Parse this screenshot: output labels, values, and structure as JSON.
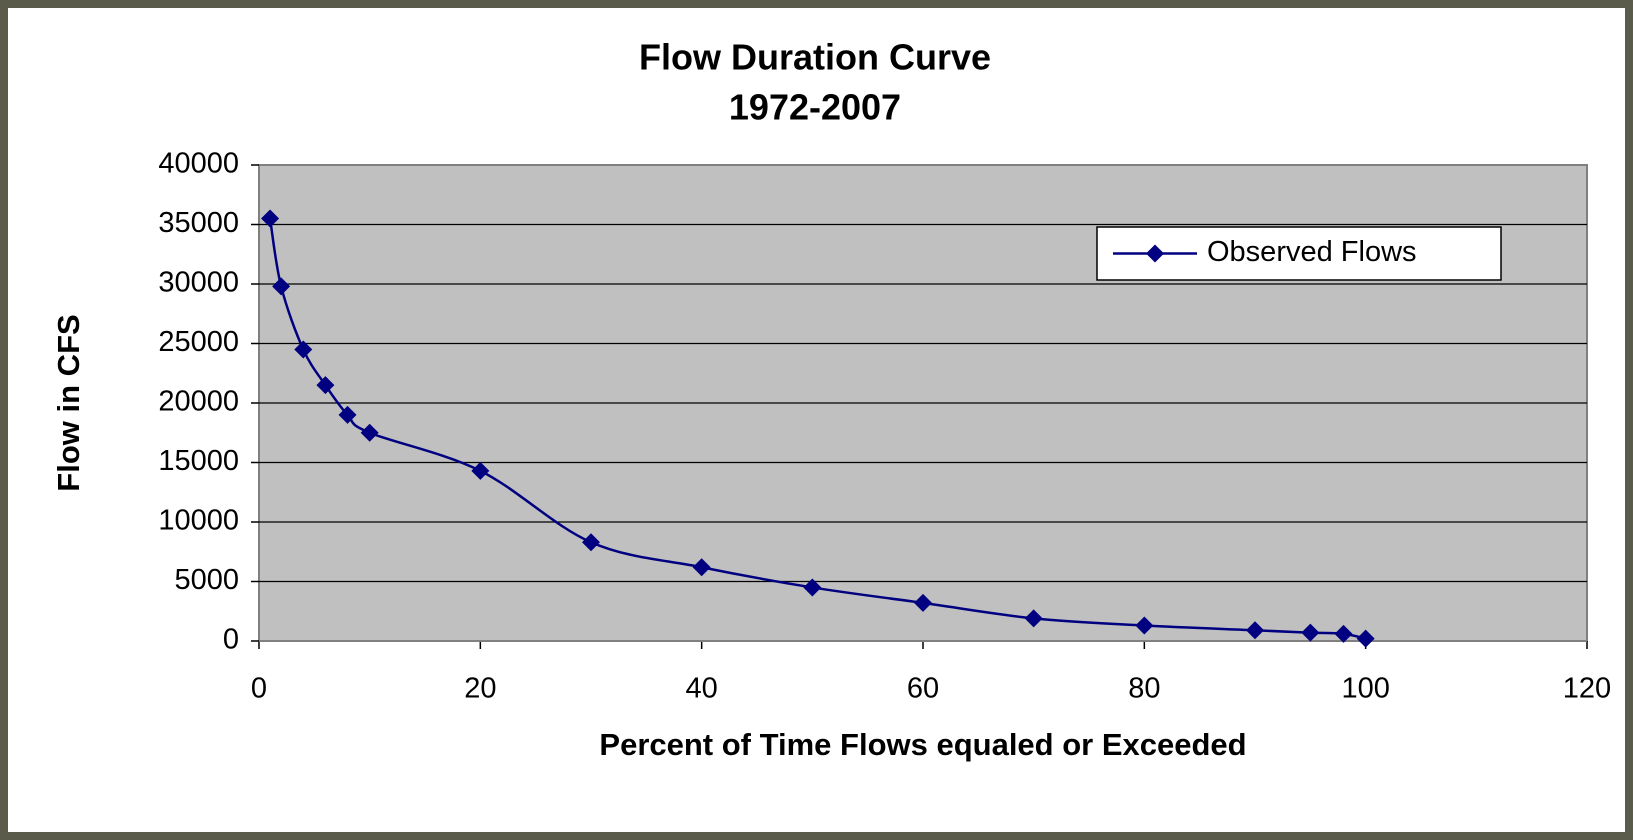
{
  "chart_data": {
    "type": "line",
    "title": "Flow Duration Curve",
    "subtitle": "1972-2007",
    "x_label": "Percent of Time Flows equaled or Exceeded",
    "y_label": "Flow in CFS",
    "series": [
      {
        "name": "Observed Flows",
        "color": "#000080",
        "x": [
          1,
          2,
          4,
          6,
          8,
          10,
          20,
          30,
          40,
          50,
          60,
          70,
          80,
          90,
          95,
          98,
          100
        ],
        "values": [
          35500,
          29800,
          24500,
          21500,
          19000,
          17500,
          14300,
          8300,
          6200,
          4500,
          3200,
          1900,
          1300,
          900,
          700,
          600,
          200
        ]
      }
    ],
    "xlim": [
      0,
      120
    ],
    "xticks": [
      0,
      20,
      40,
      60,
      80,
      100,
      120
    ],
    "ylim": [
      0,
      40000
    ],
    "yticks": [
      0,
      5000,
      10000,
      15000,
      20000,
      25000,
      30000,
      35000,
      40000
    ],
    "grid": true,
    "legend": "upper right"
  }
}
